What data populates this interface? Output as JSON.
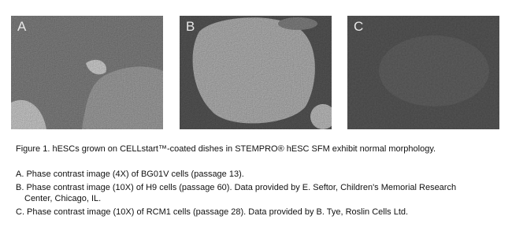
{
  "panels": [
    {
      "label": "A"
    },
    {
      "label": "B"
    },
    {
      "label": "C"
    }
  ],
  "caption": "Figure 1.  hESCs grown on CELLstart™-coated dishes in STEMPRO® hESC SFM exhibit normal morphology.",
  "notes": [
    "A. Phase contrast image (4X) of BG01V cells (passage 13).",
    "B. Phase contrast image (10X) of H9 cells (passage 60). Data provided by E. Seftor, Children's Memorial Research Center, Chicago, IL.",
    "C. Phase contrast image (10X) of RCM1 cells (passage 28). Data provided by B. Tye, Roslin Cells Ltd."
  ]
}
